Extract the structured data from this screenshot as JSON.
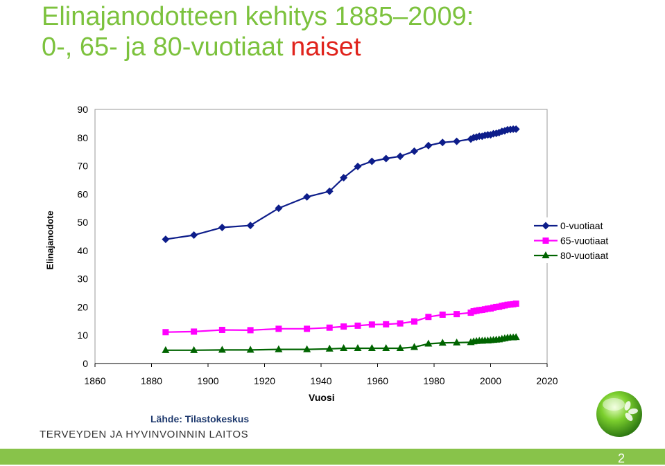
{
  "slide": {
    "title_line1": "Elinajanodotteen kehitys 1885–2009:",
    "title_line2_main": "0-, 65- ja 80-vuotiaat ",
    "title_line2_accent": "naiset",
    "source": "Lähde: Tilastokeskus",
    "organization": "TERVEYDEN JA HYVINVOINNIN LAITOS",
    "page_number": "2"
  },
  "colors": {
    "title": "#7cc23d",
    "accent": "#e0231c",
    "series_0": "#0d1d8a",
    "series_65": "#ff00ff",
    "series_80": "#006400",
    "footer": "#88c34a"
  },
  "chart_data": {
    "type": "line",
    "title": "",
    "xlabel": "Vuosi",
    "ylabel": "Elinajanodote",
    "xlim": [
      1860,
      2020
    ],
    "ylim": [
      0,
      90
    ],
    "xticks": [
      1860,
      1880,
      1900,
      1920,
      1940,
      1960,
      1980,
      2000,
      2020
    ],
    "yticks": [
      0,
      10,
      20,
      30,
      40,
      50,
      60,
      70,
      80,
      90
    ],
    "grid": "horizontal",
    "legend_position": "right",
    "series": [
      {
        "name": "0-vuotiaat",
        "marker": "diamond",
        "color": "#0d1d8a",
        "x": [
          1885,
          1895,
          1905,
          1915,
          1925,
          1935,
          1943,
          1948,
          1953,
          1958,
          1963,
          1968,
          1973,
          1978,
          1983,
          1988,
          1993,
          1994,
          1995,
          1996,
          1997,
          1998,
          1999,
          2000,
          2001,
          2002,
          2003,
          2004,
          2005,
          2006,
          2007,
          2008,
          2009
        ],
        "y": [
          44.0,
          45.5,
          48.2,
          48.9,
          55.0,
          59.0,
          61.0,
          65.8,
          69.8,
          71.6,
          72.6,
          73.4,
          75.2,
          77.2,
          78.3,
          78.7,
          79.5,
          80.0,
          80.2,
          80.5,
          80.5,
          80.8,
          81.0,
          81.0,
          81.4,
          81.5,
          81.8,
          82.2,
          82.4,
          82.8,
          82.9,
          83.0,
          83.0
        ]
      },
      {
        "name": "65-vuotiaat",
        "marker": "square",
        "color": "#ff00ff",
        "x": [
          1885,
          1895,
          1905,
          1915,
          1925,
          1935,
          1943,
          1948,
          1953,
          1958,
          1963,
          1968,
          1973,
          1978,
          1983,
          1988,
          1993,
          1994,
          1995,
          1996,
          1997,
          1998,
          1999,
          2000,
          2001,
          2002,
          2003,
          2004,
          2005,
          2006,
          2007,
          2008,
          2009
        ],
        "y": [
          11.1,
          11.3,
          11.9,
          11.8,
          12.3,
          12.3,
          12.7,
          13.1,
          13.4,
          13.8,
          13.9,
          14.2,
          14.9,
          16.5,
          17.3,
          17.5,
          18.0,
          18.5,
          18.7,
          18.9,
          19.0,
          19.2,
          19.4,
          19.5,
          19.8,
          20.0,
          20.1,
          20.4,
          20.6,
          20.8,
          20.9,
          21.0,
          21.2
        ]
      },
      {
        "name": "80-vuotiaat",
        "marker": "triangle",
        "color": "#006400",
        "x": [
          1885,
          1895,
          1905,
          1915,
          1925,
          1935,
          1943,
          1948,
          1953,
          1958,
          1963,
          1968,
          1973,
          1978,
          1983,
          1988,
          1993,
          1994,
          1995,
          1996,
          1997,
          1998,
          1999,
          2000,
          2001,
          2002,
          2003,
          2004,
          2005,
          2006,
          2007,
          2008,
          2009
        ],
        "y": [
          4.7,
          4.7,
          4.8,
          4.8,
          5.0,
          5.0,
          5.2,
          5.4,
          5.4,
          5.4,
          5.4,
          5.4,
          5.8,
          7.0,
          7.3,
          7.4,
          7.5,
          7.8,
          7.9,
          8.0,
          8.0,
          8.1,
          8.1,
          8.2,
          8.3,
          8.4,
          8.5,
          8.7,
          8.9,
          9.1,
          9.2,
          9.2,
          9.3
        ]
      }
    ]
  }
}
